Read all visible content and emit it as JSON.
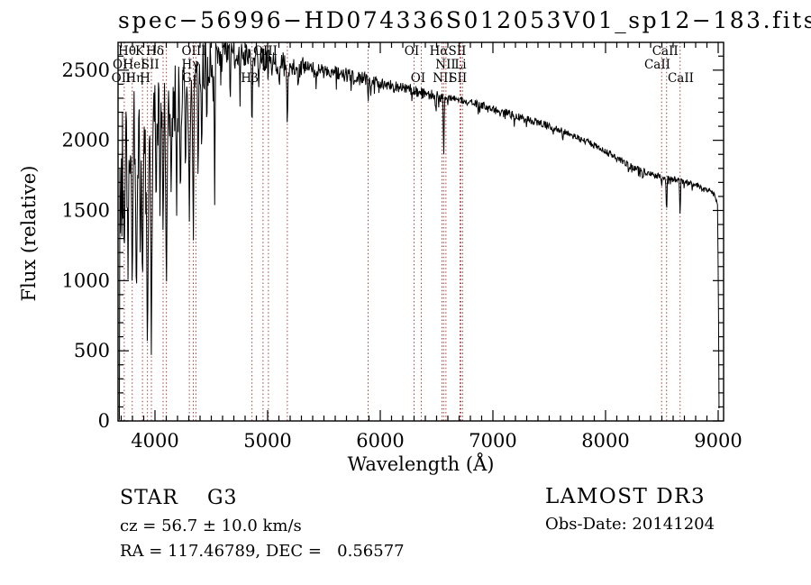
{
  "title": "spec−56996−HD074336S012053V01_sp12−183.fits",
  "axes": {
    "xlabel": "Wavelength (Å)",
    "ylabel": "Flux (relative)"
  },
  "annotations": {
    "class_label": "STAR    G3",
    "cz": "cz = 56.7 ± 10.0 km/s",
    "radec": "RA = 117.46789, DEC =   0.56577",
    "survey": "LAMOST DR3",
    "obs_date": "Obs-Date: 20141204"
  },
  "colors": {
    "spectrum": "#000000",
    "line_marker": "#a04040",
    "frame": "#000000",
    "background": "#ffffff"
  },
  "chart_data": {
    "type": "line",
    "title": "spec−56996−HD074336S012053V01_sp12−183.fits",
    "xlabel": "Wavelength (Å)",
    "ylabel": "Flux (relative)",
    "xlim": [
      3672,
      9048
    ],
    "ylim": [
      0,
      2698
    ],
    "xticks": [
      4000,
      5000,
      6000,
      7000,
      8000,
      9000
    ],
    "yticks": [
      0,
      500,
      1000,
      1500,
      2000,
      2500
    ],
    "minor_x_step": 100,
    "minor_y_step": 100,
    "grid": false,
    "legend": null,
    "continuum_points": [
      [
        3684,
        60
      ],
      [
        3690,
        1100
      ],
      [
        3700,
        1750
      ],
      [
        3720,
        1900
      ],
      [
        3750,
        1970
      ],
      [
        3800,
        2030
      ],
      [
        3850,
        2070
      ],
      [
        3900,
        2110
      ],
      [
        3960,
        2140
      ],
      [
        4000,
        2170
      ],
      [
        4060,
        2210
      ],
      [
        4120,
        2240
      ],
      [
        4180,
        2280
      ],
      [
        4240,
        2330
      ],
      [
        4300,
        2390
      ],
      [
        4360,
        2460
      ],
      [
        4420,
        2520
      ],
      [
        4480,
        2560
      ],
      [
        4560,
        2590
      ],
      [
        4650,
        2610
      ],
      [
        4750,
        2615
      ],
      [
        4850,
        2600
      ],
      [
        4950,
        2580
      ],
      [
        5050,
        2560
      ],
      [
        5150,
        2540
      ],
      [
        5250,
        2530
      ],
      [
        5350,
        2515
      ],
      [
        5450,
        2500
      ],
      [
        5550,
        2485
      ],
      [
        5650,
        2470
      ],
      [
        5750,
        2455
      ],
      [
        5850,
        2440
      ],
      [
        5950,
        2420
      ],
      [
        6050,
        2400
      ],
      [
        6150,
        2385
      ],
      [
        6250,
        2365
      ],
      [
        6350,
        2345
      ],
      [
        6450,
        2325
      ],
      [
        6550,
        2310
      ],
      [
        6650,
        2295
      ],
      [
        6750,
        2280
      ],
      [
        6850,
        2260
      ],
      [
        6950,
        2240
      ],
      [
        7050,
        2215
      ],
      [
        7150,
        2190
      ],
      [
        7250,
        2165
      ],
      [
        7350,
        2140
      ],
      [
        7450,
        2115
      ],
      [
        7550,
        2085
      ],
      [
        7650,
        2055
      ],
      [
        7750,
        2020
      ],
      [
        7850,
        1985
      ],
      [
        7950,
        1945
      ],
      [
        8050,
        1900
      ],
      [
        8150,
        1850
      ],
      [
        8250,
        1805
      ],
      [
        8350,
        1775
      ],
      [
        8450,
        1750
      ],
      [
        8550,
        1730
      ],
      [
        8650,
        1715
      ],
      [
        8750,
        1695
      ],
      [
        8850,
        1670
      ],
      [
        8930,
        1640
      ],
      [
        8975,
        1600
      ],
      [
        8995,
        1550
      ],
      [
        9002,
        900
      ],
      [
        9008,
        60
      ]
    ],
    "noise_regions": [
      [
        3684,
        3710,
        1000
      ],
      [
        3710,
        3775,
        700
      ],
      [
        3775,
        3990,
        330
      ],
      [
        3990,
        4320,
        260
      ],
      [
        4320,
        4520,
        190
      ],
      [
        4520,
        4720,
        120
      ],
      [
        4720,
        5320,
        85
      ],
      [
        5320,
        5950,
        55
      ],
      [
        5950,
        6560,
        40
      ],
      [
        6560,
        7620,
        26
      ],
      [
        7620,
        9010,
        22
      ]
    ],
    "absorption_lines": [
      [
        3727,
        1050,
        12
      ],
      [
        3761,
        900,
        10
      ],
      [
        3798,
        700,
        12
      ],
      [
        3835,
        650,
        14
      ],
      [
        3870,
        900,
        10
      ],
      [
        3889,
        750,
        14
      ],
      [
        3933,
        240,
        16
      ],
      [
        3968,
        330,
        15
      ],
      [
        4010,
        1300,
        8
      ],
      [
        4045,
        1250,
        8
      ],
      [
        4072,
        1150,
        10
      ],
      [
        4101,
        730,
        14
      ],
      [
        4144,
        1500,
        10
      ],
      [
        4192,
        1330,
        8
      ],
      [
        4226,
        1400,
        10
      ],
      [
        4271,
        1550,
        8
      ],
      [
        4305,
        1430,
        16
      ],
      [
        4340,
        1050,
        10
      ],
      [
        4383,
        1500,
        9
      ],
      [
        4415,
        1700,
        8
      ],
      [
        4460,
        1900,
        7
      ],
      [
        4530,
        1520,
        9
      ],
      [
        4668,
        2150,
        7
      ],
      [
        4755,
        2250,
        6
      ],
      [
        4861,
        1900,
        8
      ],
      [
        4920,
        2300,
        6
      ],
      [
        5104,
        2300,
        7
      ],
      [
        5175,
        1995,
        10
      ],
      [
        5270,
        2330,
        8
      ],
      [
        5430,
        2380,
        6
      ],
      [
        5892,
        2230,
        8
      ],
      [
        6122,
        2300,
        6
      ],
      [
        6280,
        2290,
        5
      ],
      [
        6495,
        2170,
        6
      ],
      [
        6563,
        1800,
        8
      ],
      [
        6870,
        2200,
        5
      ],
      [
        7190,
        2090,
        6
      ],
      [
        7620,
        2000,
        10
      ],
      [
        7680,
        2050,
        8
      ],
      [
        8205,
        1740,
        6
      ],
      [
        8330,
        1710,
        6
      ],
      [
        8498,
        1640,
        7
      ],
      [
        8542,
        1410,
        8
      ],
      [
        8662,
        1445,
        8
      ]
    ],
    "line_markers": [
      3727,
      3798,
      3889,
      3933,
      3968,
      4072,
      4101,
      4305,
      4340,
      4363,
      4861,
      4959,
      5007,
      5175,
      5892,
      6300,
      6364,
      6548,
      6563,
      6583,
      6708,
      6716,
      6731,
      8498,
      8542,
      8662
    ],
    "line_labels": [
      {
        "row": 1,
        "lambda": 3752,
        "text": "Hθ"
      },
      {
        "row": 1,
        "lambda": 3864,
        "text": "K"
      },
      {
        "row": 1,
        "lambda": 4000,
        "text": "Hδ"
      },
      {
        "row": 1,
        "lambda": 4344,
        "text": "OIII"
      },
      {
        "row": 1,
        "lambda": 4980,
        "text": "OIII"
      },
      {
        "row": 1,
        "lambda": 6280,
        "text": "OI"
      },
      {
        "row": 1,
        "lambda": 6600,
        "text": "HαSII"
      },
      {
        "row": 1,
        "lambda": 8530,
        "text": "CaII"
      },
      {
        "row": 2,
        "lambda": 3690,
        "text": "OI"
      },
      {
        "row": 2,
        "lambda": 3815,
        "text": "HeI"
      },
      {
        "row": 2,
        "lambda": 3958,
        "text": "SII"
      },
      {
        "row": 2,
        "lambda": 4315,
        "text": "Hγ"
      },
      {
        "row": 2,
        "lambda": 6580,
        "text": "NII"
      },
      {
        "row": 2,
        "lambda": 6712,
        "text": "Li"
      },
      {
        "row": 2,
        "lambda": 8460,
        "text": "CaII"
      },
      {
        "row": 3,
        "lambda": 3700,
        "text": "OII"
      },
      {
        "row": 3,
        "lambda": 3818,
        "text": "Hη"
      },
      {
        "row": 3,
        "lambda": 3912,
        "text": "H"
      },
      {
        "row": 3,
        "lambda": 4282,
        "text": "G"
      },
      {
        "row": 3,
        "lambda": 4840,
        "text": "Hβ"
      },
      {
        "row": 3,
        "lambda": 6336,
        "text": "OI"
      },
      {
        "row": 3,
        "lambda": 6556,
        "text": "NII"
      },
      {
        "row": 3,
        "lambda": 6690,
        "text": "SII"
      },
      {
        "row": 3,
        "lambda": 8668,
        "text": "CaII"
      }
    ]
  }
}
